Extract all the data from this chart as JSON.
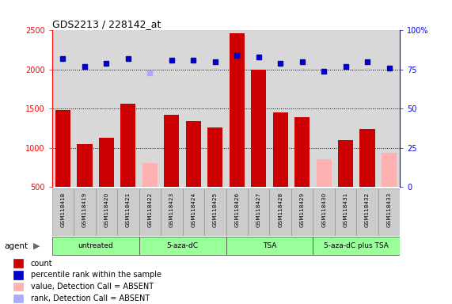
{
  "title": "GDS2213 / 228142_at",
  "samples": [
    "GSM118418",
    "GSM118419",
    "GSM118420",
    "GSM118421",
    "GSM118422",
    "GSM118423",
    "GSM118424",
    "GSM118425",
    "GSM118426",
    "GSM118427",
    "GSM118428",
    "GSM118429",
    "GSM118430",
    "GSM118431",
    "GSM118432",
    "GSM118433"
  ],
  "counts": [
    1480,
    1050,
    1130,
    1560,
    null,
    1420,
    1340,
    1260,
    2460,
    2000,
    1450,
    1390,
    null,
    1100,
    1240,
    null
  ],
  "counts_absent": [
    null,
    null,
    null,
    null,
    810,
    null,
    null,
    null,
    null,
    null,
    null,
    null,
    860,
    null,
    null,
    940
  ],
  "percentile_ranks": [
    82,
    77,
    79,
    82,
    null,
    81,
    81,
    80,
    84,
    83,
    79,
    80,
    74,
    77,
    80,
    76
  ],
  "percentile_ranks_absent": [
    null,
    null,
    null,
    null,
    73,
    null,
    null,
    null,
    null,
    null,
    null,
    null,
    null,
    null,
    null,
    null
  ],
  "groups": [
    {
      "label": "untreated",
      "start": 0,
      "end": 3
    },
    {
      "label": "5-aza-dC",
      "start": 4,
      "end": 7
    },
    {
      "label": "TSA",
      "start": 8,
      "end": 11
    },
    {
      "label": "5-aza-dC plus TSA",
      "start": 12,
      "end": 15
    }
  ],
  "ylim_left": [
    500,
    2500
  ],
  "ylim_right": [
    0,
    100
  ],
  "bar_color_present": "#cc0000",
  "bar_color_absent": "#ffb0b0",
  "dot_color_present": "#0000cc",
  "dot_color_absent": "#aaaaff",
  "background_color": "#ffffff",
  "plot_bg_color": "#d8d8d8",
  "yticks_left": [
    500,
    1000,
    1500,
    2000,
    2500
  ],
  "yticks_right": [
    0,
    25,
    50,
    75,
    100
  ],
  "dotted_line_values": [
    1000,
    1500,
    2000
  ],
  "agent_label": "agent",
  "legend": [
    {
      "label": "count",
      "color": "#cc0000"
    },
    {
      "label": "percentile rank within the sample",
      "color": "#0000cc"
    },
    {
      "label": "value, Detection Call = ABSENT",
      "color": "#ffb0b0"
    },
    {
      "label": "rank, Detection Call = ABSENT",
      "color": "#aaaaff"
    }
  ]
}
